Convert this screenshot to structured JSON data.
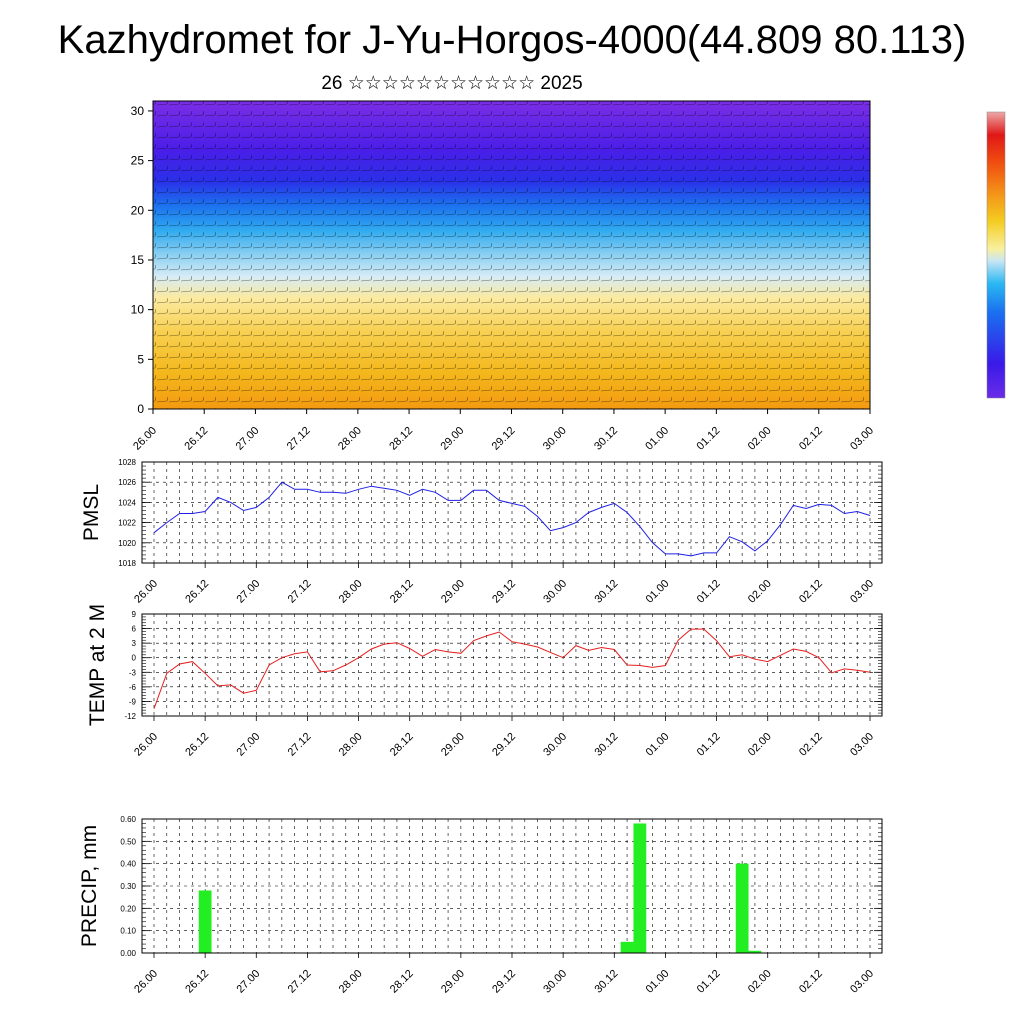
{
  "title": "Kazhydromet for J-Yu-Horgos-4000(44.809 80.113)",
  "subtitle": "26 ☆☆☆☆☆☆☆☆☆☆☆ 2025",
  "colors": {
    "pmsl_line": "#1f1fe6",
    "temp_line": "#e61f1f",
    "precip_bar": "#22ee22",
    "colorbar": [
      "#7a2be6",
      "#3a1ae8",
      "#1a6ef0",
      "#29b8f0",
      "#c8e6f4",
      "#f8f0b0",
      "#f4d02a",
      "#f4a020",
      "#f06010",
      "#e01818",
      "#e8a0a0"
    ]
  },
  "chart_data": [
    {
      "type": "heatmap",
      "title": "",
      "xlabel": "",
      "ylabel": "",
      "x_tick_labels": [
        "26.00",
        "26.12",
        "27.00",
        "27.12",
        "28.00",
        "28.12",
        "29.00",
        "29.12",
        "30.00",
        "30.12",
        "01.00",
        "01.12",
        "02.00",
        "02.12",
        "03.00"
      ],
      "y_tick_labels": [
        "0",
        "5",
        "10",
        "15",
        "20",
        "25",
        "30"
      ],
      "ylim": [
        0,
        31
      ],
      "notes": "vertical cross-section, temperature shading with wind barbs; warm (yellow/orange) below ~12, cold (blue/purple) above"
    },
    {
      "type": "line",
      "ylabel": "PMSL",
      "ylim": [
        1018,
        1028
      ],
      "y_tick_labels": [
        "1028",
        "1026",
        "1024",
        "1022",
        "1020",
        "1018"
      ],
      "x_tick_labels": [
        "26.00",
        "26.12",
        "27.00",
        "27.12",
        "28.00",
        "28.12",
        "29.00",
        "29.12",
        "30.00",
        "30.12",
        "01.00",
        "01.12",
        "02.00",
        "02.12",
        "03.00"
      ],
      "series": [
        {
          "values": [
            1021.0,
            1022.0,
            1022.9,
            1022.9,
            1023.1,
            1024.5,
            1024.0,
            1023.2,
            1023.5,
            1024.5,
            1026.0,
            1025.3,
            1025.3,
            1025.0,
            1025.0,
            1024.9,
            1025.3,
            1025.6,
            1025.4,
            1025.2,
            1024.7,
            1025.3,
            1025.0,
            1024.2,
            1024.2,
            1025.2,
            1025.2,
            1024.2,
            1023.9,
            1023.6,
            1022.6,
            1021.2,
            1021.5,
            1022.0,
            1023.0,
            1023.5,
            1023.9,
            1023.0,
            1021.6,
            1020.0,
            1018.9,
            1018.9,
            1018.7,
            1019.0,
            1019.0,
            1020.6,
            1020.1,
            1019.2,
            1020.2,
            1021.8,
            1023.7,
            1023.4,
            1023.8,
            1023.7,
            1022.9,
            1023.1,
            1022.7
          ]
        }
      ]
    },
    {
      "type": "line",
      "ylabel": "TEMP at 2 M",
      "ylim": [
        -12,
        9
      ],
      "y_tick_labels": [
        "9",
        "6",
        "3",
        "0",
        "-3",
        "-6",
        "-9",
        "-12"
      ],
      "x_tick_labels": [
        "26.00",
        "26.12",
        "27.00",
        "27.12",
        "28.00",
        "28.12",
        "29.00",
        "29.12",
        "30.00",
        "30.12",
        "01.00",
        "01.12",
        "02.00",
        "02.12",
        "03.00"
      ],
      "series": [
        {
          "values": [
            -10.5,
            -3.2,
            -1.3,
            -0.8,
            -3.2,
            -5.8,
            -5.6,
            -7.3,
            -6.7,
            -1.5,
            0.0,
            0.8,
            1.2,
            -2.9,
            -2.7,
            -1.5,
            0.0,
            1.8,
            2.8,
            3.1,
            1.9,
            0.3,
            1.7,
            1.2,
            0.9,
            3.5,
            4.5,
            5.3,
            3.3,
            2.8,
            2.2,
            1.1,
            0.0,
            2.5,
            1.5,
            2.1,
            1.7,
            -1.5,
            -1.6,
            -2.0,
            -1.6,
            3.6,
            5.9,
            5.9,
            3.5,
            0.2,
            0.6,
            -0.3,
            -0.8,
            0.5,
            1.8,
            1.3,
            0.0,
            -3.1,
            -2.3,
            -2.6,
            -3.0
          ]
        }
      ]
    },
    {
      "type": "bar",
      "ylabel": "PRECIP, mm",
      "ylim": [
        0,
        0.6
      ],
      "y_tick_labels": [
        "0.60",
        "0.50",
        "0.40",
        "0.30",
        "0.20",
        "0.10",
        "0.00"
      ],
      "x_tick_labels": [
        "26.00",
        "26.12",
        "27.00",
        "27.12",
        "28.00",
        "28.12",
        "29.00",
        "29.12",
        "30.00",
        "30.12",
        "01.00",
        "01.12",
        "02.00",
        "02.12",
        "03.00"
      ],
      "bars": [
        {
          "x": 4,
          "value": 0.28
        },
        {
          "x": 37,
          "value": 0.05
        },
        {
          "x": 38,
          "value": 0.58
        },
        {
          "x": 46,
          "value": 0.4
        },
        {
          "x": 47,
          "value": 0.01
        }
      ]
    }
  ]
}
